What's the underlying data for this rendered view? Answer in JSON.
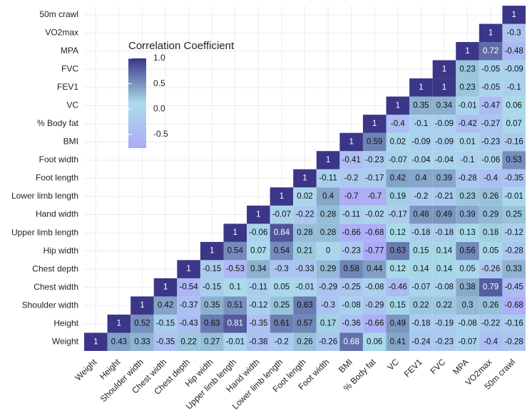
{
  "chart_data": {
    "type": "heatmap",
    "variables": [
      "Weight",
      "Height",
      "Shoulder width",
      "Chest width",
      "Chest depth",
      "Hip width",
      "Upper limb length",
      "Hand width",
      "Lower limb length",
      "Foot length",
      "Foot width",
      "BMI",
      "% Body fat",
      "VC",
      "FEV1",
      "FVC",
      "MPA",
      "VO2max",
      "50m crawl"
    ],
    "matrix": [
      [
        1,
        0.43,
        0.33,
        -0.35,
        0.22,
        0.27,
        -0.01,
        -0.38,
        -0.2,
        0.26,
        -0.26,
        0.68,
        0.06,
        0.41,
        -0.24,
        -0.23,
        -0.07,
        -0.4,
        -0.28
      ],
      [
        1,
        0.52,
        -0.15,
        -0.43,
        0.63,
        0.81,
        -0.35,
        0.61,
        0.57,
        0.17,
        -0.36,
        -0.66,
        0.49,
        -0.18,
        -0.19,
        -0.08,
        -0.22,
        -0.16
      ],
      [
        1,
        0.42,
        -0.37,
        0.35,
        0.51,
        -0.12,
        0.25,
        0.63,
        -0.3,
        -0.08,
        -0.29,
        0.15,
        0.22,
        0.22,
        0.3,
        0.26,
        -0.68
      ],
      [
        1,
        -0.54,
        -0.15,
        0.1,
        -0.11,
        0.05,
        -0.01,
        -0.29,
        -0.25,
        -0.08,
        -0.46,
        -0.07,
        -0.08,
        0.38,
        0.79,
        -0.45
      ],
      [
        1,
        -0.15,
        -0.53,
        0.34,
        -0.3,
        -0.33,
        0.29,
        0.58,
        0.44,
        0.12,
        0.14,
        0.14,
        0.05,
        -0.26,
        0.33
      ],
      [
        1,
        0.54,
        0.07,
        0.54,
        0.21,
        0,
        -0.23,
        -0.77,
        0.63,
        0.15,
        0.14,
        0.56,
        0.05,
        -0.28
      ],
      [
        1,
        -0.06,
        0.84,
        0.28,
        0.28,
        -0.66,
        -0.68,
        0.12,
        -0.18,
        -0.18,
        0.13,
        0.18,
        -0.12
      ],
      [
        1,
        -0.07,
        -0.22,
        0.28,
        -0.11,
        -0.02,
        -0.17,
        0.48,
        0.49,
        0.39,
        0.29,
        0.25
      ],
      [
        1,
        0.02,
        0.4,
        -0.7,
        -0.7,
        0.19,
        -0.2,
        -0.21,
        0.23,
        0.26,
        -0.01
      ],
      [
        1,
        -0.11,
        -0.2,
        -0.17,
        0.42,
        0.4,
        0.39,
        -0.28,
        -0.4,
        -0.35
      ],
      [
        1,
        -0.41,
        -0.23,
        -0.07,
        -0.04,
        -0.04,
        -0.1,
        -0.06,
        0.53
      ],
      [
        1,
        0.59,
        0.02,
        -0.09,
        -0.09,
        0.01,
        -0.23,
        -0.16
      ],
      [
        1,
        -0.4,
        -0.1,
        -0.09,
        -0.42,
        -0.27,
        0.07
      ],
      [
        1,
        0.35,
        0.34,
        -0.01,
        -0.47,
        0.06
      ],
      [
        1,
        1,
        0.23,
        -0.05,
        -0.1
      ],
      [
        1,
        0.23,
        -0.05,
        -0.09
      ],
      [
        1,
        0.72,
        -0.48
      ],
      [
        1,
        -0.3
      ],
      [
        1
      ]
    ],
    "legend_title": "Correlation Coefficient",
    "colorlim": [
      -0.77,
      1
    ],
    "colors": [
      "#aeaaf8",
      "#a9dcea",
      "#3b3688"
    ],
    "legend_ticks": [
      {
        "value": 1,
        "label": "1.0"
      },
      0.5,
      {
        "value": 0,
        "label": "0.0"
      },
      -0.5
    ],
    "grid": true
  }
}
